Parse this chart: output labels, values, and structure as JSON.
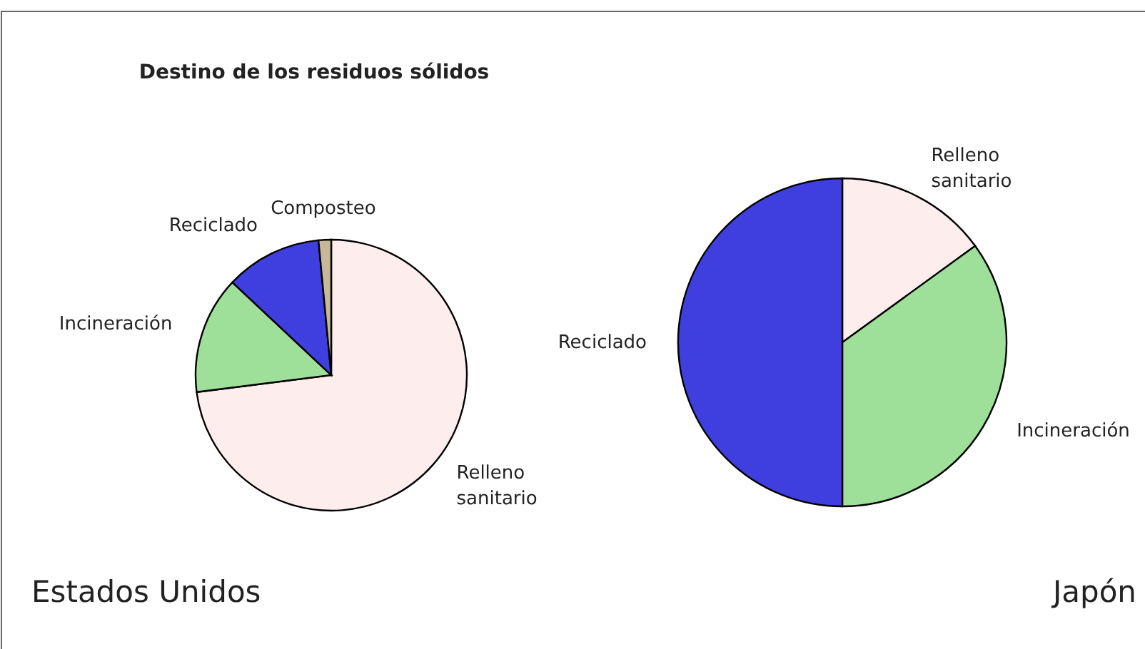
{
  "chart_data": [
    {
      "type": "pie",
      "title": "Destino de los residuos sólidos",
      "categories": [
        "Relleno sanitario",
        "Incineración",
        "Reciclado",
        "Composteo"
      ],
      "values": [
        73,
        14,
        11.5,
        1.5
      ],
      "colors": [
        "#fdeeed",
        "#9ee09a",
        "#3f3fdf",
        "#c8b89a"
      ],
      "annotations": [
        "Estados Unidos"
      ]
    },
    {
      "type": "pie",
      "categories": [
        "Relleno sanitario",
        "Incineración",
        "Reciclado"
      ],
      "values": [
        15,
        35,
        50
      ],
      "colors": [
        "#fdeeed",
        "#9ee09a",
        "#3f3fdf"
      ],
      "annotations": [
        "Japón"
      ]
    }
  ]
}
